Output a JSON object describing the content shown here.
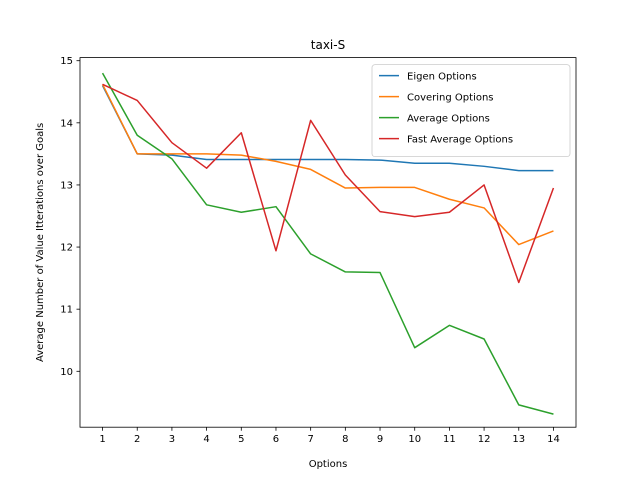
{
  "chart_data": {
    "type": "line",
    "title": "taxi-S",
    "xlabel": "Options",
    "ylabel": "Average Number of Value Itterations over Goals",
    "x": [
      1,
      2,
      3,
      4,
      5,
      6,
      7,
      8,
      9,
      10,
      11,
      12,
      13,
      14
    ],
    "xlim": [
      0.35,
      14.65
    ],
    "ylim": [
      9.1,
      15.05
    ],
    "yticks": [
      10,
      11,
      12,
      13,
      14,
      15
    ],
    "grid": false,
    "legend_position": "top-right",
    "series": [
      {
        "name": "Eigen Options",
        "color": "#1f77b4",
        "values": [
          14.6,
          13.5,
          13.48,
          13.41,
          13.41,
          13.41,
          13.41,
          13.41,
          13.4,
          13.35,
          13.35,
          13.3,
          13.23,
          13.23
        ]
      },
      {
        "name": "Covering Options",
        "color": "#ff7f0e",
        "values": [
          14.62,
          13.5,
          13.5,
          13.5,
          13.48,
          13.38,
          13.25,
          12.95,
          12.96,
          12.96,
          12.77,
          12.63,
          12.04,
          12.26
        ]
      },
      {
        "name": "Average Options",
        "color": "#2ca02c",
        "values": [
          14.8,
          13.8,
          13.42,
          12.68,
          12.56,
          12.65,
          11.89,
          11.6,
          11.59,
          10.38,
          10.74,
          10.52,
          9.46,
          9.31
        ]
      },
      {
        "name": "Fast Average Options",
        "color": "#d62728",
        "values": [
          14.62,
          14.36,
          13.68,
          13.27,
          13.84,
          11.94,
          14.04,
          13.16,
          12.57,
          12.49,
          12.56,
          13.0,
          11.43,
          12.95
        ]
      }
    ]
  }
}
